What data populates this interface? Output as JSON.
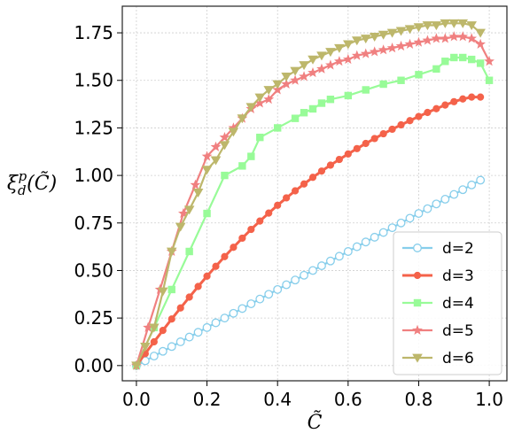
{
  "chart_data": {
    "type": "line",
    "title": "",
    "xlabel": "C̃",
    "ylabel": "ξ",
    "ylabel_sub": "d",
    "ylabel_sup": "p",
    "ylabel_arg": "(C̃)",
    "xlim": [
      -0.04,
      1.05
    ],
    "ylim": [
      -0.08,
      1.89
    ],
    "x_ticks": [
      0.0,
      0.2,
      0.4,
      0.6,
      0.8,
      1.0
    ],
    "x_tick_labels": [
      "0.0",
      "0.2",
      "0.4",
      "0.6",
      "0.8",
      "1.0"
    ],
    "y_ticks": [
      0.0,
      0.25,
      0.5,
      0.75,
      1.0,
      1.25,
      1.5,
      1.75
    ],
    "y_tick_labels": [
      "0.00",
      "0.25",
      "0.50",
      "0.75",
      "1.00",
      "1.25",
      "1.50",
      "1.75"
    ],
    "grid": true,
    "legend_position": "lower-right",
    "series": [
      {
        "name": "d=2",
        "color": "#87ceeb",
        "marker": "circle-open",
        "x": [
          0.0,
          0.025,
          0.05,
          0.075,
          0.1,
          0.125,
          0.15,
          0.175,
          0.2,
          0.225,
          0.25,
          0.275,
          0.3,
          0.325,
          0.35,
          0.375,
          0.4,
          0.425,
          0.45,
          0.475,
          0.5,
          0.525,
          0.55,
          0.575,
          0.6,
          0.625,
          0.65,
          0.675,
          0.7,
          0.725,
          0.75,
          0.775,
          0.8,
          0.825,
          0.85,
          0.875,
          0.9,
          0.925,
          0.95,
          0.975
        ],
        "y": [
          0.0,
          0.025,
          0.05,
          0.075,
          0.1,
          0.125,
          0.15,
          0.175,
          0.2,
          0.225,
          0.25,
          0.275,
          0.3,
          0.325,
          0.35,
          0.375,
          0.4,
          0.425,
          0.45,
          0.475,
          0.5,
          0.525,
          0.55,
          0.575,
          0.6,
          0.625,
          0.65,
          0.675,
          0.7,
          0.725,
          0.75,
          0.775,
          0.8,
          0.825,
          0.85,
          0.875,
          0.9,
          0.925,
          0.95,
          0.975
        ]
      },
      {
        "name": "d=3",
        "color": "#f4624a",
        "marker": "circle-filled",
        "x": [
          0.0,
          0.025,
          0.05,
          0.075,
          0.1,
          0.125,
          0.15,
          0.175,
          0.2,
          0.225,
          0.25,
          0.275,
          0.3,
          0.325,
          0.35,
          0.375,
          0.4,
          0.425,
          0.45,
          0.475,
          0.5,
          0.525,
          0.55,
          0.575,
          0.6,
          0.625,
          0.65,
          0.675,
          0.7,
          0.725,
          0.75,
          0.775,
          0.8,
          0.825,
          0.85,
          0.875,
          0.9,
          0.925,
          0.95,
          0.975
        ],
        "y": [
          0.0,
          0.063,
          0.125,
          0.185,
          0.245,
          0.303,
          0.36,
          0.416,
          0.47,
          0.522,
          0.573,
          0.622,
          0.67,
          0.716,
          0.76,
          0.802,
          0.843,
          0.882,
          0.919,
          0.955,
          0.99,
          1.023,
          1.054,
          1.084,
          1.113,
          1.141,
          1.168,
          1.194,
          1.219,
          1.243,
          1.266,
          1.288,
          1.31,
          1.331,
          1.351,
          1.37,
          1.388,
          1.402,
          1.412,
          1.412
        ]
      },
      {
        "name": "d=4",
        "color": "#98fb98",
        "marker": "square",
        "x": [
          0.0,
          0.05,
          0.1,
          0.15,
          0.2,
          0.25,
          0.3,
          0.325,
          0.35,
          0.4,
          0.45,
          0.475,
          0.5,
          0.525,
          0.55,
          0.6,
          0.65,
          0.7,
          0.75,
          0.8,
          0.85,
          0.875,
          0.9,
          0.925,
          0.95,
          0.975,
          1.0
        ],
        "y": [
          0.0,
          0.2,
          0.4,
          0.6,
          0.8,
          1.0,
          1.05,
          1.1,
          1.2,
          1.25,
          1.3,
          1.33,
          1.35,
          1.38,
          1.4,
          1.42,
          1.45,
          1.48,
          1.5,
          1.53,
          1.56,
          1.6,
          1.62,
          1.62,
          1.61,
          1.59,
          1.5
        ]
      },
      {
        "name": "d=5",
        "color": "#f08080",
        "marker": "star",
        "x": [
          0.0,
          0.033,
          0.067,
          0.1,
          0.133,
          0.167,
          0.2,
          0.225,
          0.25,
          0.275,
          0.3,
          0.325,
          0.35,
          0.375,
          0.4,
          0.425,
          0.45,
          0.475,
          0.5,
          0.525,
          0.55,
          0.575,
          0.6,
          0.625,
          0.65,
          0.675,
          0.7,
          0.725,
          0.75,
          0.775,
          0.8,
          0.825,
          0.85,
          0.875,
          0.9,
          0.925,
          0.95,
          0.975,
          1.0
        ],
        "y": [
          0.0,
          0.2,
          0.4,
          0.6,
          0.8,
          0.95,
          1.1,
          1.15,
          1.2,
          1.25,
          1.3,
          1.35,
          1.38,
          1.4,
          1.45,
          1.48,
          1.5,
          1.52,
          1.54,
          1.56,
          1.58,
          1.6,
          1.61,
          1.63,
          1.64,
          1.65,
          1.66,
          1.67,
          1.68,
          1.69,
          1.7,
          1.71,
          1.72,
          1.72,
          1.73,
          1.73,
          1.72,
          1.69,
          1.6
        ]
      },
      {
        "name": "d=6",
        "color": "#bdb76b",
        "marker": "triangle-down",
        "x": [
          0.0,
          0.025,
          0.05,
          0.075,
          0.1,
          0.125,
          0.15,
          0.175,
          0.2,
          0.225,
          0.25,
          0.275,
          0.3,
          0.325,
          0.35,
          0.375,
          0.4,
          0.425,
          0.45,
          0.475,
          0.5,
          0.525,
          0.55,
          0.575,
          0.6,
          0.625,
          0.65,
          0.675,
          0.7,
          0.725,
          0.75,
          0.775,
          0.8,
          0.825,
          0.85,
          0.875,
          0.9,
          0.925,
          0.95,
          0.975
        ],
        "y": [
          0.0,
          0.1,
          0.2,
          0.39,
          0.6,
          0.73,
          0.82,
          0.91,
          1.03,
          1.08,
          1.16,
          1.23,
          1.3,
          1.36,
          1.41,
          1.45,
          1.48,
          1.52,
          1.55,
          1.58,
          1.61,
          1.63,
          1.65,
          1.67,
          1.69,
          1.71,
          1.72,
          1.73,
          1.74,
          1.75,
          1.76,
          1.77,
          1.78,
          1.79,
          1.79,
          1.8,
          1.8,
          1.8,
          1.79,
          1.75
        ]
      }
    ]
  }
}
